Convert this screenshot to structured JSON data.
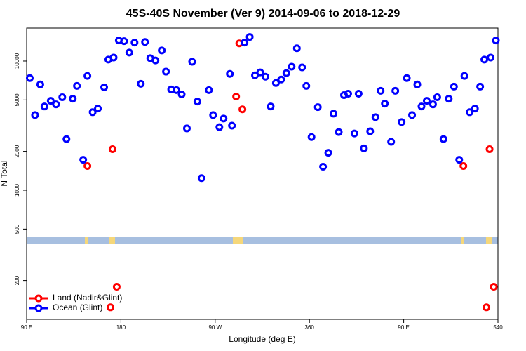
{
  "chart_data": {
    "type": "scatter",
    "title": "45S-40S November (Ver 9)   2014-09-06 to 2018-12-29",
    "x_label": "Longitude (deg E)",
    "y_label": "N Total",
    "xlim": [
      90,
      540
    ],
    "ylim": [
      100,
      18000
    ],
    "ylog": true,
    "xticks": [
      {
        "value": 90,
        "label": "90 E"
      },
      180,
      {
        "value": 270,
        "label": "90 W"
      },
      360,
      {
        "value": 450,
        "label": "90 E"
      },
      540
    ],
    "yticks": [
      200,
      500,
      1000,
      2000,
      5000,
      10000
    ],
    "legend": "lower left",
    "series": [
      {
        "name": "Land (Nadir&Glint)",
        "color": "#ff0000",
        "x": [
          148,
          172,
          176,
          170,
          293,
          290,
          296,
          507,
          532,
          536,
          529
        ],
        "values": [
          1540,
          2080,
          179,
          124,
          13710,
          5310,
          4230,
          1540,
          2080,
          179,
          124
        ]
      },
      {
        "name": "Ocean (Glint)",
        "color": "#0000ff",
        "x": [
          93,
          98,
          103,
          107,
          113,
          118,
          124,
          128,
          134,
          138,
          144,
          148,
          153,
          158,
          164,
          168,
          173,
          178,
          183,
          188,
          193,
          199,
          203,
          208,
          213,
          219,
          223,
          228,
          233,
          238,
          243,
          248,
          253,
          257,
          264,
          268,
          274,
          278,
          284,
          286,
          298,
          303,
          308,
          313,
          318,
          323,
          328,
          333,
          338,
          343,
          348,
          353,
          357,
          362,
          368,
          373,
          378,
          383,
          388,
          393,
          397,
          403,
          407,
          412,
          418,
          423,
          428,
          432,
          438,
          442,
          448,
          453,
          458,
          463,
          467,
          472,
          478,
          482,
          488,
          493,
          498,
          503,
          508,
          513,
          518,
          523,
          527,
          533,
          538
        ],
        "values": [
          7380,
          3820,
          6590,
          4450,
          4920,
          4620,
          5250,
          2490,
          5110,
          6420,
          1720,
          7670,
          4020,
          4290,
          6260,
          10260,
          10650,
          14430,
          14260,
          11640,
          13900,
          6670,
          14060,
          10520,
          10110,
          12080,
          8280,
          6030,
          5960,
          5520,
          3010,
          9880,
          4860,
          1240,
          5960,
          3820,
          3080,
          3590,
          7960,
          3160,
          13900,
          15380,
          7760,
          8170,
          7570,
          4450,
          6760,
          7200,
          8070,
          9040,
          12560,
          8930,
          6420,
          2580,
          4400,
          1520,
          1950,
          3920,
          2820,
          5450,
          5590,
          2750,
          5590,
          2110,
          2860,
          3680,
          5880,
          4680,
          2370,
          5880,
          3370,
          7380,
          3820,
          6590,
          4450,
          4920,
          4620,
          5250,
          2490,
          5110,
          6340,
          1720,
          7670,
          4020,
          4290,
          6340,
          10260,
          10650,
          14430
        ]
      }
    ]
  }
}
